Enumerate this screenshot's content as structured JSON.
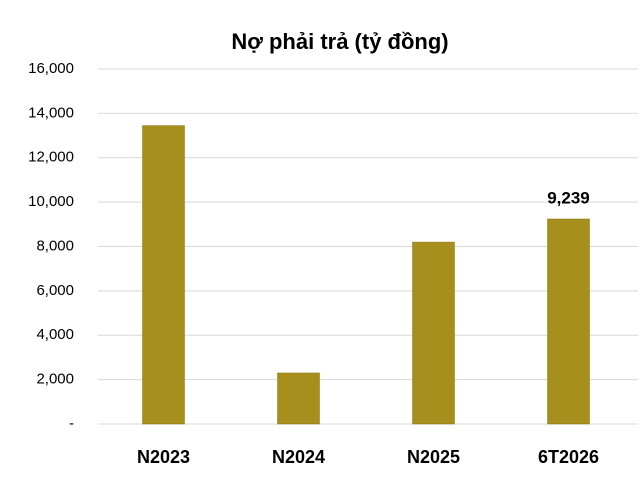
{
  "chart_data": {
    "type": "bar",
    "title": "Nợ phải trả (tỷ đồng)",
    "categories": [
      "N2023",
      "N2024",
      "N2025",
      "6T2026"
    ],
    "values": [
      13450,
      2300,
      8200,
      9239
    ],
    "value_labels": [
      null,
      null,
      null,
      "9,239"
    ],
    "color": "#a68f1c",
    "ylim": [
      0,
      16000
    ],
    "yticks": [
      {
        "value": 0,
        "label": "-"
      },
      {
        "value": 2000,
        "label": "2,000"
      },
      {
        "value": 4000,
        "label": "4,000"
      },
      {
        "value": 6000,
        "label": "6,000"
      },
      {
        "value": 8000,
        "label": "8,000"
      },
      {
        "value": 10000,
        "label": "10,000"
      },
      {
        "value": 12000,
        "label": "12,000"
      },
      {
        "value": 14000,
        "label": "14,000"
      },
      {
        "value": 16000,
        "label": "16,000"
      }
    ],
    "grid": true
  }
}
